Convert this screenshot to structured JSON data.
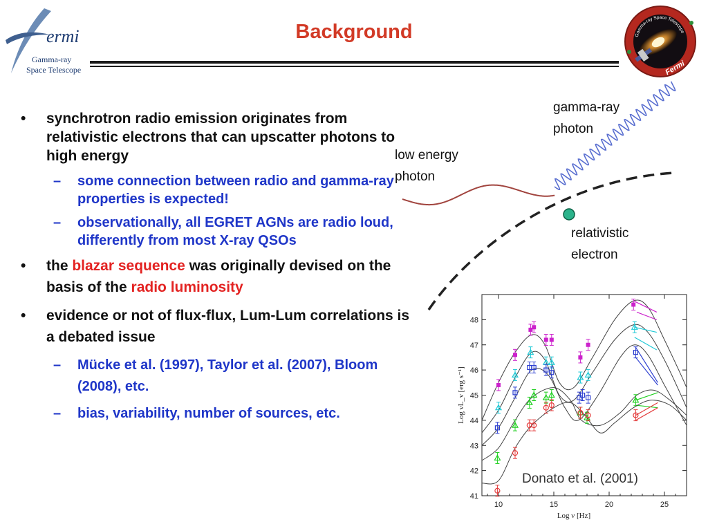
{
  "header": {
    "logo": {
      "brand": "ermi",
      "line1": "Gamma-ray",
      "line2": "Space Telescope"
    },
    "title": "Background",
    "badge": {
      "ring_text": "Gamma-ray Space Telescope",
      "name": "Fermi"
    }
  },
  "bullets": [
    {
      "text": "synchrotron radio emission originates from relativistic electrons that can upscatter photons to high energy",
      "sub": [
        "some connection between radio and gamma-ray properties is expected!",
        "observationally, all EGRET AGNs are radio loud, differently from most X-ray QSOs"
      ]
    },
    {
      "pre": "the ",
      "hl1": "blazar sequence",
      "mid": " was originally devised on the basis of the ",
      "hl2": "radio luminosity"
    },
    {
      "text": "evidence or not of flux-flux, Lum-Lum correlations is a debated issue",
      "sub": [
        "Mücke et al. (1997), Taylor et al. (2007), Bloom (2008), etc.",
        "bias, variability, number of sources, etc."
      ]
    }
  ],
  "diagram": {
    "gamma_label": [
      "gamma-ray",
      "photon"
    ],
    "low_label": [
      "low energy",
      "photon"
    ],
    "electron_label": [
      "relativistic",
      "electron"
    ],
    "colors": {
      "low_photon": "#a1443e",
      "gamma_photon": "#5a6fd0",
      "electron": "#2bb38b",
      "track": "#222222"
    }
  },
  "chart_data": {
    "type": "line",
    "xlabel": "Log ν [Hz]",
    "ylabel": "Log νL_ν [erg s⁻¹]",
    "xlim": [
      8.5,
      27
    ],
    "ylim": [
      41,
      49
    ],
    "xticks": [
      "10",
      "15",
      "20",
      "25"
    ],
    "xtick_values": [
      10,
      15,
      20,
      25
    ],
    "yticks": [
      "41",
      "42",
      "43",
      "44",
      "45",
      "46",
      "47",
      "48"
    ],
    "ytick_values": [
      41,
      42,
      43,
      44,
      45,
      46,
      47,
      48
    ],
    "annotation": "Donato et al. (2001)",
    "series": [
      {
        "color": "#cc22cc",
        "marker": "filled-square",
        "curve": [
          [
            8.5,
            44.0
          ],
          [
            10,
            45.5
          ],
          [
            11.5,
            46.7
          ],
          [
            13,
            47.4
          ],
          [
            14.2,
            47.0
          ],
          [
            15.5,
            45.5
          ],
          [
            16.8,
            45.3
          ],
          [
            18.5,
            46.5
          ],
          [
            20.5,
            48.0
          ],
          [
            22.2,
            48.75
          ],
          [
            23.5,
            48.5
          ],
          [
            25,
            47.2
          ],
          [
            26.5,
            45.8
          ],
          [
            27,
            45.3
          ]
        ],
        "points": [
          [
            10,
            45.4
          ],
          [
            11.5,
            46.6
          ],
          [
            12.9,
            47.6
          ],
          [
            13.2,
            47.7
          ],
          [
            14.3,
            47.2
          ],
          [
            14.8,
            47.2
          ],
          [
            17.4,
            46.5
          ],
          [
            18.1,
            47.0
          ],
          [
            22.2,
            48.6
          ]
        ],
        "segments": [
          [
            [
              22.2,
              48.75
            ],
            [
              24.3,
              48.3
            ]
          ],
          [
            [
              22.5,
              48.3
            ],
            [
              24.3,
              48.0
            ]
          ]
        ]
      },
      {
        "color": "#1ec9d6",
        "marker": "open-triangle",
        "curve": [
          [
            8.5,
            43.5
          ],
          [
            10,
            44.4
          ],
          [
            11.5,
            45.7
          ],
          [
            13,
            46.7
          ],
          [
            14.2,
            46.4
          ],
          [
            15.5,
            45.0
          ],
          [
            16.8,
            44.8
          ],
          [
            18.5,
            45.9
          ],
          [
            20.5,
            47.2
          ],
          [
            22.2,
            47.8
          ],
          [
            23.5,
            47.5
          ],
          [
            25,
            46.4
          ],
          [
            26.5,
            45.0
          ],
          [
            27,
            44.5
          ]
        ],
        "points": [
          [
            10,
            44.5
          ],
          [
            11.5,
            45.8
          ],
          [
            12.9,
            46.7
          ],
          [
            14.3,
            46.3
          ],
          [
            14.8,
            46.3
          ],
          [
            17.4,
            45.7
          ],
          [
            18.1,
            45.8
          ],
          [
            22.3,
            47.7
          ]
        ],
        "segments": [
          [
            [
              22.3,
              47.7
            ],
            [
              24.3,
              47.5
            ]
          ],
          [
            [
              22.3,
              47.3
            ],
            [
              24.3,
              46.8
            ]
          ]
        ]
      },
      {
        "color": "#2d3fd0",
        "marker": "open-square",
        "curve": [
          [
            8.5,
            43.0
          ],
          [
            10,
            43.7
          ],
          [
            11.5,
            44.9
          ],
          [
            13,
            46.0
          ],
          [
            14.5,
            45.8
          ],
          [
            16,
            44.5
          ],
          [
            17.2,
            44.0
          ],
          [
            19,
            45.0
          ],
          [
            21,
            46.5
          ],
          [
            22.3,
            47.0
          ],
          [
            23.5,
            46.6
          ],
          [
            25,
            45.4
          ],
          [
            26.5,
            44.2
          ],
          [
            27,
            43.8
          ]
        ],
        "points": [
          [
            9.9,
            43.7
          ],
          [
            11.5,
            45.1
          ],
          [
            12.8,
            46.1
          ],
          [
            13.2,
            46.1
          ],
          [
            14.3,
            46.0
          ],
          [
            14.8,
            45.9
          ],
          [
            17.3,
            44.9
          ],
          [
            17.6,
            45.0
          ],
          [
            18.1,
            44.9
          ],
          [
            22.4,
            46.7
          ]
        ],
        "segments": [
          [
            [
              22.4,
              46.9
            ],
            [
              24.4,
              45.5
            ]
          ],
          [
            [
              22.4,
              46.5
            ],
            [
              24.4,
              45.4
            ]
          ]
        ]
      },
      {
        "color": "#1fcf1f",
        "marker": "open-triangle",
        "curve": [
          [
            8.5,
            42.4
          ],
          [
            10,
            42.9
          ],
          [
            11.5,
            44.0
          ],
          [
            13,
            44.9
          ],
          [
            15,
            45.3
          ],
          [
            16.5,
            44.8
          ],
          [
            17.5,
            44.0
          ],
          [
            19.2,
            43.8
          ],
          [
            21,
            44.3
          ],
          [
            22.5,
            45.0
          ],
          [
            24,
            45.2
          ],
          [
            25.5,
            44.8
          ],
          [
            27,
            44.2
          ]
        ],
        "points": [
          [
            9.9,
            42.5
          ],
          [
            11.5,
            43.8
          ],
          [
            12.8,
            44.7
          ],
          [
            13.2,
            45.0
          ],
          [
            14.3,
            44.9
          ],
          [
            14.8,
            45.0
          ],
          [
            17.4,
            44.3
          ],
          [
            18.0,
            44.1
          ],
          [
            22.4,
            44.8
          ]
        ],
        "segments": [
          [
            [
              22.4,
              44.8
            ],
            [
              24.4,
              45.1
            ]
          ],
          [
            [
              22.4,
              44.6
            ],
            [
              24.4,
              44.5
            ]
          ]
        ]
      },
      {
        "color": "#e33b3b",
        "marker": "open-circle",
        "curve": [
          [
            8.5,
            41.5
          ],
          [
            10,
            41.6
          ],
          [
            11.5,
            42.9
          ],
          [
            13,
            43.8
          ],
          [
            15,
            44.5
          ],
          [
            16.5,
            44.7
          ],
          [
            17.8,
            44.2
          ],
          [
            19.2,
            43.5
          ],
          [
            20.5,
            43.9
          ],
          [
            22.2,
            44.5
          ],
          [
            23.8,
            44.8
          ],
          [
            25.5,
            44.6
          ],
          [
            27,
            44.0
          ]
        ],
        "points": [
          [
            9.9,
            41.2
          ],
          [
            11.5,
            42.7
          ],
          [
            12.8,
            43.8
          ],
          [
            13.2,
            43.8
          ],
          [
            14.3,
            44.5
          ],
          [
            14.8,
            44.6
          ],
          [
            17.4,
            44.3
          ],
          [
            18.1,
            44.2
          ],
          [
            22.4,
            44.2
          ]
        ],
        "segments": [
          [
            [
              22.4,
              44.2
            ],
            [
              24.4,
              44.7
            ]
          ],
          [
            [
              22.4,
              44.0
            ],
            [
              24.4,
              44.5
            ]
          ]
        ]
      }
    ]
  }
}
